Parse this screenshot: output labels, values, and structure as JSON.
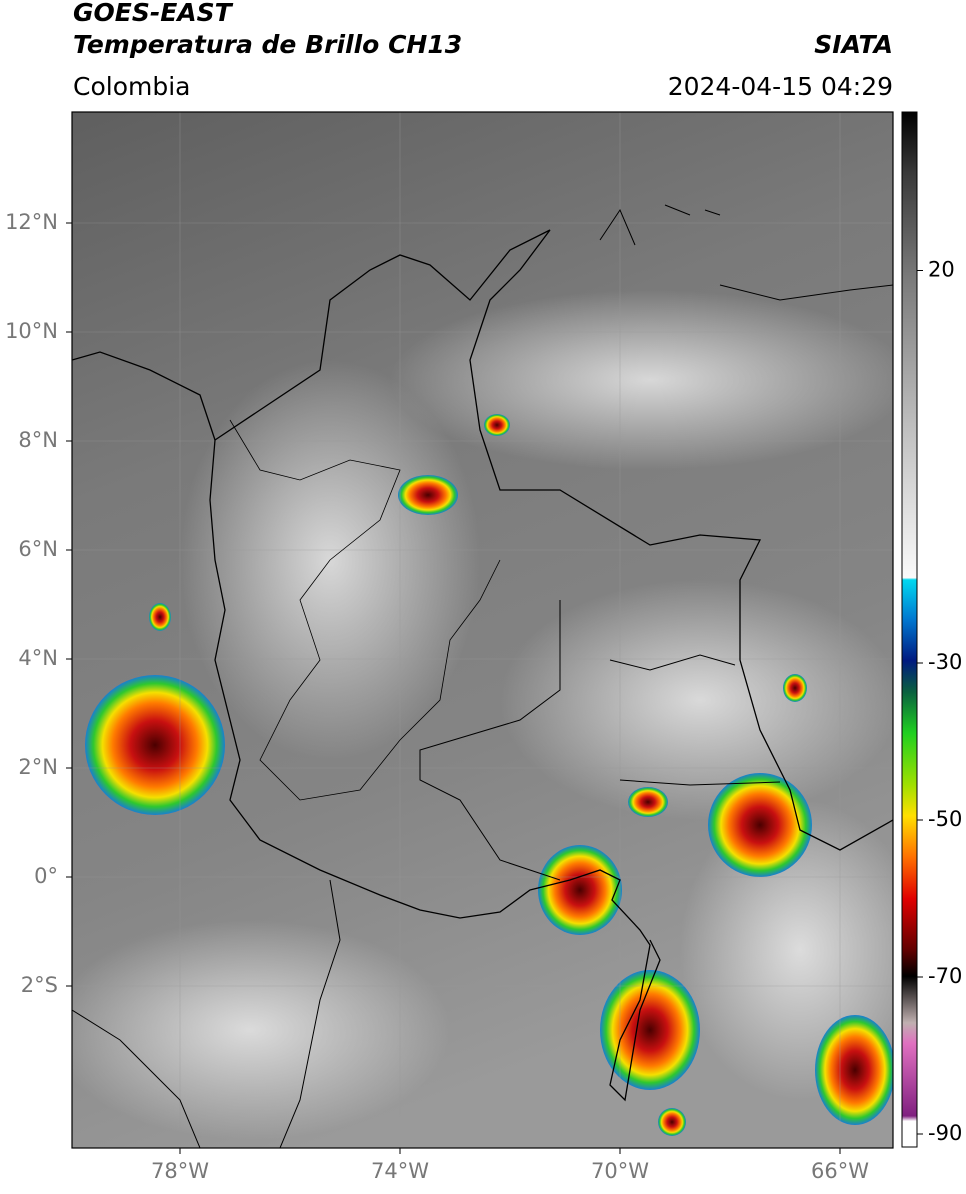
{
  "header": {
    "satellite": "GOES-EAST",
    "product": "Temperatura de Brillo CH13",
    "source": "SIATA",
    "region": "Colombia",
    "datetime": "2024-04-15 04:29"
  },
  "map": {
    "lat_labels": [
      "12°N",
      "10°N",
      "8°N",
      "6°N",
      "4°N",
      "2°N",
      "0°",
      "2°S"
    ],
    "lon_labels": [
      "78°W",
      "74°W",
      "70°W",
      "66°W"
    ]
  },
  "colorbar": {
    "ticks": [
      20,
      -30,
      -50,
      -70,
      -90
    ]
  }
}
